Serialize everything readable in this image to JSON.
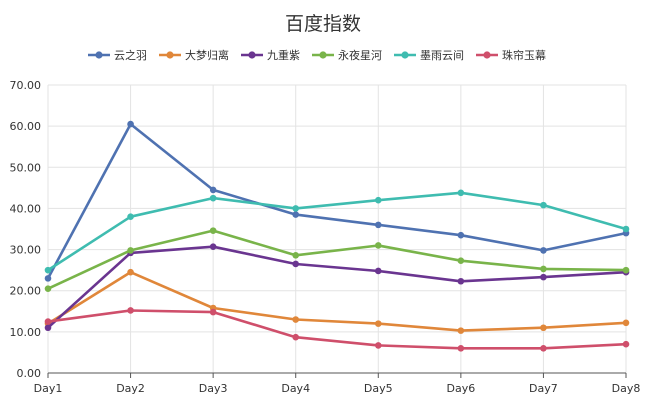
{
  "chart_data": {
    "type": "line",
    "title": "百度指数",
    "xlabel": "",
    "ylabel": "",
    "categories": [
      "Day1",
      "Day2",
      "Day3",
      "Day4",
      "Day5",
      "Day6",
      "Day7",
      "Day8"
    ],
    "ylim": [
      0,
      70
    ],
    "yticks": [
      "0.00",
      "10.00",
      "20.00",
      "30.00",
      "40.00",
      "50.00",
      "60.00",
      "70.00"
    ],
    "grid": true,
    "legend_position": "top",
    "series": [
      {
        "name": "云之羽",
        "color": "#4f72b1",
        "values": [
          23.0,
          60.5,
          44.5,
          38.5,
          36.0,
          33.5,
          29.8,
          34.0
        ]
      },
      {
        "name": "大梦归离",
        "color": "#e0873a",
        "values": [
          12.0,
          24.5,
          15.8,
          13.0,
          12.0,
          10.3,
          11.0,
          12.2
        ]
      },
      {
        "name": "九重紫",
        "color": "#6a3590",
        "values": [
          11.0,
          29.2,
          30.7,
          26.5,
          24.8,
          22.3,
          23.3,
          24.5
        ]
      },
      {
        "name": "永夜星河",
        "color": "#79b44a",
        "values": [
          20.5,
          29.8,
          34.6,
          28.6,
          31.0,
          27.3,
          25.3,
          25.0
        ]
      },
      {
        "name": "墨雨云间",
        "color": "#3fbcb0",
        "values": [
          25.0,
          38.0,
          42.5,
          40.0,
          42.0,
          43.8,
          40.8,
          35.0
        ]
      },
      {
        "name": "珠帘玉幕",
        "color": "#cf4f6b",
        "values": [
          12.5,
          15.2,
          14.8,
          8.7,
          6.7,
          6.0,
          6.0,
          7.0
        ]
      }
    ]
  }
}
